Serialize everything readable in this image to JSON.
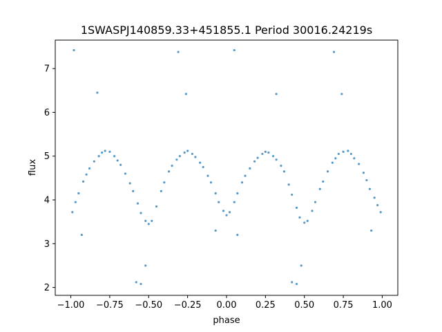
{
  "chart_data": {
    "type": "scatter",
    "title": "1SWASPJ140859.33+451855.1 Period 30016.24219s",
    "xlabel": "phase",
    "ylabel": "flux",
    "xlim": [
      -1.1,
      1.1
    ],
    "ylim": [
      1.82,
      7.65
    ],
    "xticks": [
      -1.0,
      -0.75,
      -0.5,
      -0.25,
      0.0,
      0.25,
      0.5,
      0.75,
      1.0
    ],
    "xtick_labels": [
      "−1.00",
      "−0.75",
      "−0.50",
      "−0.25",
      "0.00",
      "0.25",
      "0.50",
      "0.75",
      "1.00"
    ],
    "yticks": [
      2,
      3,
      4,
      5,
      6,
      7
    ],
    "ytick_labels": [
      "2",
      "3",
      "4",
      "5",
      "6",
      "7"
    ],
    "grid": false,
    "point_color": "#1f77b4",
    "series": [
      {
        "points": [
          [
            -0.99,
            3.72
          ],
          [
            -0.97,
            3.95
          ],
          [
            -0.95,
            4.15
          ],
          [
            -0.92,
            4.42
          ],
          [
            -0.9,
            4.58
          ],
          [
            -0.88,
            4.72
          ],
          [
            -0.85,
            4.88
          ],
          [
            -0.82,
            5.0
          ],
          [
            -0.8,
            5.08
          ],
          [
            -0.78,
            5.12
          ],
          [
            -0.75,
            5.1
          ],
          [
            -0.72,
            5.0
          ],
          [
            -0.7,
            4.9
          ],
          [
            -0.68,
            4.8
          ],
          [
            -0.65,
            4.6
          ],
          [
            -0.62,
            4.38
          ],
          [
            -0.6,
            4.2
          ],
          [
            -0.57,
            3.92
          ],
          [
            -0.55,
            3.7
          ],
          [
            -0.52,
            3.52
          ],
          [
            -0.5,
            3.45
          ],
          [
            -0.48,
            3.52
          ],
          [
            -0.45,
            3.85
          ],
          [
            -0.42,
            4.2
          ],
          [
            -0.4,
            4.4
          ],
          [
            -0.37,
            4.65
          ],
          [
            -0.35,
            4.78
          ],
          [
            -0.32,
            4.92
          ],
          [
            -0.3,
            5.0
          ],
          [
            -0.27,
            5.08
          ],
          [
            -0.25,
            5.12
          ],
          [
            -0.22,
            5.05
          ],
          [
            -0.2,
            4.98
          ],
          [
            -0.17,
            4.85
          ],
          [
            -0.15,
            4.75
          ],
          [
            -0.12,
            4.55
          ],
          [
            -0.1,
            4.4
          ],
          [
            -0.07,
            4.15
          ],
          [
            -0.05,
            3.95
          ],
          [
            -0.02,
            3.75
          ],
          [
            0.0,
            3.65
          ],
          [
            0.02,
            3.72
          ],
          [
            0.05,
            3.95
          ],
          [
            0.07,
            4.15
          ],
          [
            0.1,
            4.4
          ],
          [
            0.12,
            4.55
          ],
          [
            0.15,
            4.72
          ],
          [
            0.18,
            4.88
          ],
          [
            0.2,
            4.96
          ],
          [
            0.23,
            5.05
          ],
          [
            0.25,
            5.1
          ],
          [
            0.27,
            5.08
          ],
          [
            0.3,
            5.0
          ],
          [
            0.32,
            4.92
          ],
          [
            0.35,
            4.78
          ],
          [
            0.37,
            4.65
          ],
          [
            0.4,
            4.35
          ],
          [
            0.42,
            4.12
          ],
          [
            0.45,
            3.82
          ],
          [
            0.47,
            3.6
          ],
          [
            0.5,
            3.48
          ],
          [
            0.52,
            3.52
          ],
          [
            0.55,
            3.75
          ],
          [
            0.57,
            3.95
          ],
          [
            0.6,
            4.25
          ],
          [
            0.62,
            4.42
          ],
          [
            0.65,
            4.65
          ],
          [
            0.68,
            4.85
          ],
          [
            0.7,
            4.95
          ],
          [
            0.72,
            5.05
          ],
          [
            0.75,
            5.1
          ],
          [
            0.78,
            5.12
          ],
          [
            0.8,
            5.05
          ],
          [
            0.82,
            4.95
          ],
          [
            0.85,
            4.82
          ],
          [
            0.88,
            4.62
          ],
          [
            0.9,
            4.45
          ],
          [
            0.92,
            4.25
          ],
          [
            0.95,
            4.05
          ],
          [
            0.97,
            3.88
          ],
          [
            0.99,
            3.72
          ],
          [
            -0.98,
            7.42
          ],
          [
            -0.58,
            2.12
          ],
          [
            -0.55,
            2.08
          ],
          [
            -0.31,
            7.38
          ],
          [
            -0.26,
            6.42
          ],
          [
            0.05,
            7.42
          ],
          [
            0.32,
            6.42
          ],
          [
            0.42,
            2.12
          ],
          [
            0.45,
            2.08
          ],
          [
            0.69,
            7.38
          ],
          [
            0.74,
            6.42
          ],
          [
            -0.83,
            6.45
          ],
          [
            -0.52,
            2.5
          ],
          [
            0.48,
            2.5
          ],
          [
            -0.07,
            3.3
          ],
          [
            0.93,
            3.3
          ],
          [
            -0.93,
            3.2
          ],
          [
            0.07,
            3.2
          ]
        ]
      }
    ]
  }
}
